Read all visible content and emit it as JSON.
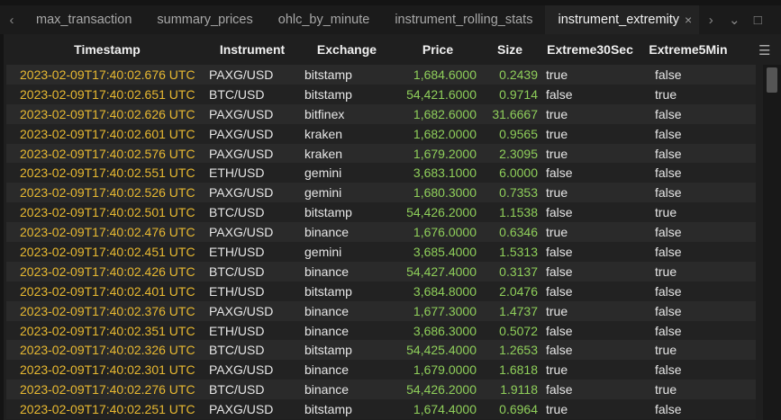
{
  "tabs": [
    {
      "label": "max_transaction"
    },
    {
      "label": "summary_prices"
    },
    {
      "label": "ohlc_by_minute"
    },
    {
      "label": "instrument_rolling_stats"
    },
    {
      "label": "instrument_extremity",
      "active": true
    }
  ],
  "icons": {
    "prev": "chevron-left-icon",
    "next": "chevron-right-icon",
    "dropdown": "chevron-down-icon",
    "maximize": "maximize-icon",
    "close": "close-icon",
    "menu": "hamburger-menu-icon"
  },
  "columns": [
    "Timestamp",
    "Instrument",
    "Exchange",
    "Price",
    "Size",
    "Extreme30Sec",
    "Extreme5Min"
  ],
  "colors": {
    "timestamp": "#e8b931",
    "numeric": "#8fcf5a"
  },
  "rows": [
    [
      "2023-02-09T17:40:02.676 UTC",
      "PAXG/USD",
      "bitstamp",
      "1,684.6000",
      "0.2439",
      "true",
      "false"
    ],
    [
      "2023-02-09T17:40:02.651 UTC",
      "BTC/USD",
      "bitstamp",
      "54,421.6000",
      "0.9714",
      "false",
      "true"
    ],
    [
      "2023-02-09T17:40:02.626 UTC",
      "PAXG/USD",
      "bitfinex",
      "1,682.6000",
      "31.6667",
      "true",
      "false"
    ],
    [
      "2023-02-09T17:40:02.601 UTC",
      "PAXG/USD",
      "kraken",
      "1,682.0000",
      "0.9565",
      "true",
      "false"
    ],
    [
      "2023-02-09T17:40:02.576 UTC",
      "PAXG/USD",
      "kraken",
      "1,679.2000",
      "2.3095",
      "true",
      "false"
    ],
    [
      "2023-02-09T17:40:02.551 UTC",
      "ETH/USD",
      "gemini",
      "3,683.1000",
      "6.0000",
      "false",
      "false"
    ],
    [
      "2023-02-09T17:40:02.526 UTC",
      "PAXG/USD",
      "gemini",
      "1,680.3000",
      "0.7353",
      "true",
      "false"
    ],
    [
      "2023-02-09T17:40:02.501 UTC",
      "BTC/USD",
      "bitstamp",
      "54,426.2000",
      "1.1538",
      "false",
      "true"
    ],
    [
      "2023-02-09T17:40:02.476 UTC",
      "PAXG/USD",
      "binance",
      "1,676.0000",
      "0.6346",
      "true",
      "false"
    ],
    [
      "2023-02-09T17:40:02.451 UTC",
      "ETH/USD",
      "gemini",
      "3,685.4000",
      "1.5313",
      "false",
      "false"
    ],
    [
      "2023-02-09T17:40:02.426 UTC",
      "BTC/USD",
      "binance",
      "54,427.4000",
      "0.3137",
      "false",
      "true"
    ],
    [
      "2023-02-09T17:40:02.401 UTC",
      "ETH/USD",
      "bitstamp",
      "3,684.8000",
      "2.0476",
      "false",
      "false"
    ],
    [
      "2023-02-09T17:40:02.376 UTC",
      "PAXG/USD",
      "binance",
      "1,677.3000",
      "1.4737",
      "true",
      "false"
    ],
    [
      "2023-02-09T17:40:02.351 UTC",
      "ETH/USD",
      "binance",
      "3,686.3000",
      "0.5072",
      "false",
      "false"
    ],
    [
      "2023-02-09T17:40:02.326 UTC",
      "BTC/USD",
      "bitstamp",
      "54,425.4000",
      "1.2653",
      "false",
      "true"
    ],
    [
      "2023-02-09T17:40:02.301 UTC",
      "PAXG/USD",
      "binance",
      "1,679.0000",
      "1.6818",
      "true",
      "false"
    ],
    [
      "2023-02-09T17:40:02.276 UTC",
      "BTC/USD",
      "binance",
      "54,426.2000",
      "1.9118",
      "false",
      "true"
    ],
    [
      "2023-02-09T17:40:02.251 UTC",
      "PAXG/USD",
      "bitstamp",
      "1,674.4000",
      "0.6964",
      "true",
      "false"
    ]
  ]
}
